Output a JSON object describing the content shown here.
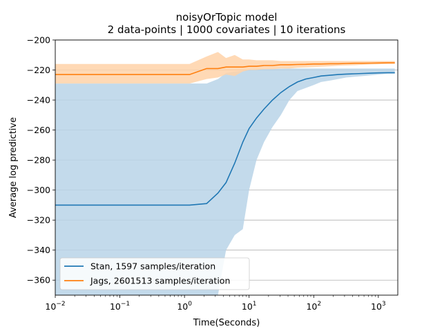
{
  "chart_data": {
    "type": "line",
    "title": "noisyOrTopic model",
    "subtitle": "2 data-points | 1000 covariates | 10 iterations",
    "xlabel": "Time(Seconds)",
    "ylabel": "Average log predictive",
    "xscale": "log",
    "xlim": [
      0.01,
      2000
    ],
    "ylim": [
      -370,
      -200
    ],
    "yticks": [
      -200,
      -220,
      -240,
      -260,
      -280,
      -300,
      -320,
      -340,
      -360
    ],
    "ytick_labels": [
      "−200",
      "−220",
      "−240",
      "−260",
      "−280",
      "−300",
      "−320",
      "−340",
      "−360"
    ],
    "xticks": [
      0.01,
      0.1,
      1,
      10,
      100,
      1000
    ],
    "xtick_labels": [
      {
        "base": "10",
        "exp": "−2"
      },
      {
        "base": "10",
        "exp": "−1"
      },
      {
        "base": "10",
        "exp": "0"
      },
      {
        "base": "10",
        "exp": "1"
      },
      {
        "base": "10",
        "exp": "2"
      },
      {
        "base": "10",
        "exp": "3"
      }
    ],
    "grid": "horizontal",
    "legend_location": "lower-left",
    "series": [
      {
        "name": "Stan, 1597 samples/iteration",
        "color": "#1f77b4",
        "fill_color": "#b9d3e8",
        "x": [
          0.01,
          1.2,
          2.2,
          3.3,
          4.4,
          6.0,
          8.0,
          10,
          13,
          17,
          23,
          31,
          42,
          56,
          75,
          100,
          130,
          180,
          240,
          320,
          430,
          580,
          780,
          1000,
          1400,
          1800
        ],
        "y": [
          -310,
          -310,
          -309,
          -302,
          -295,
          -282,
          -268,
          -259,
          -252,
          -246,
          -240,
          -235,
          -231,
          -228,
          -226,
          -225,
          -224,
          -223.5,
          -223,
          -222.7,
          -222.5,
          -222.3,
          -222.1,
          -221.9,
          -221.8,
          -221.8
        ],
        "lower": [
          -370,
          -370,
          -370,
          -370,
          -340,
          -330,
          -326,
          -300,
          -280,
          -268,
          -258,
          -250,
          -240,
          -234,
          -232,
          -230,
          -228,
          -227,
          -226,
          -225,
          -224.5,
          -224,
          -223.5,
          -223,
          -222.5,
          -222.5
        ],
        "upper": [
          -229,
          -229,
          -229,
          -226,
          -222,
          -221,
          -220.5,
          -220,
          -219.5,
          -219.3,
          -219.2,
          -219.1,
          -219,
          -219,
          -219,
          -219,
          -219,
          -219,
          -219,
          -219,
          -219,
          -219,
          -219,
          -219,
          -219,
          -219
        ]
      },
      {
        "name": "Jags, 2601513 samples/iteration",
        "color": "#ff7f0e",
        "fill_color": "#ffd2a8",
        "x": [
          0.01,
          1.2,
          2.2,
          3.3,
          4.4,
          6.0,
          8.0,
          10,
          13,
          17,
          23,
          31,
          42,
          56,
          75,
          100,
          130,
          180,
          240,
          320,
          430,
          580,
          780,
          1000,
          1400,
          1800
        ],
        "y": [
          -223,
          -223,
          -219,
          -219,
          -218,
          -218,
          -218,
          -217.5,
          -217.5,
          -217,
          -217,
          -216.5,
          -216.5,
          -216.3,
          -216.2,
          -216,
          -216,
          -215.8,
          -215.8,
          -215.6,
          -215.5,
          -215.5,
          -215.4,
          -215.3,
          -215.2,
          -215.2
        ],
        "lower": [
          -229,
          -229,
          -226,
          -225,
          -223,
          -224,
          -221,
          -220,
          -220,
          -219.5,
          -219.5,
          -219,
          -219,
          -218.5,
          -218.3,
          -218,
          -217.8,
          -217.5,
          -217.2,
          -217,
          -216.8,
          -216.5,
          -216.3,
          -216.2,
          -216,
          -216
        ],
        "upper": [
          -216,
          -216,
          -211,
          -208,
          -212,
          -210,
          -213,
          -213,
          -213.5,
          -213.5,
          -213.5,
          -214,
          -214,
          -214,
          -214,
          -214,
          -214,
          -214,
          -214,
          -214,
          -214,
          -214,
          -214,
          -214,
          -214,
          -214
        ]
      }
    ]
  }
}
